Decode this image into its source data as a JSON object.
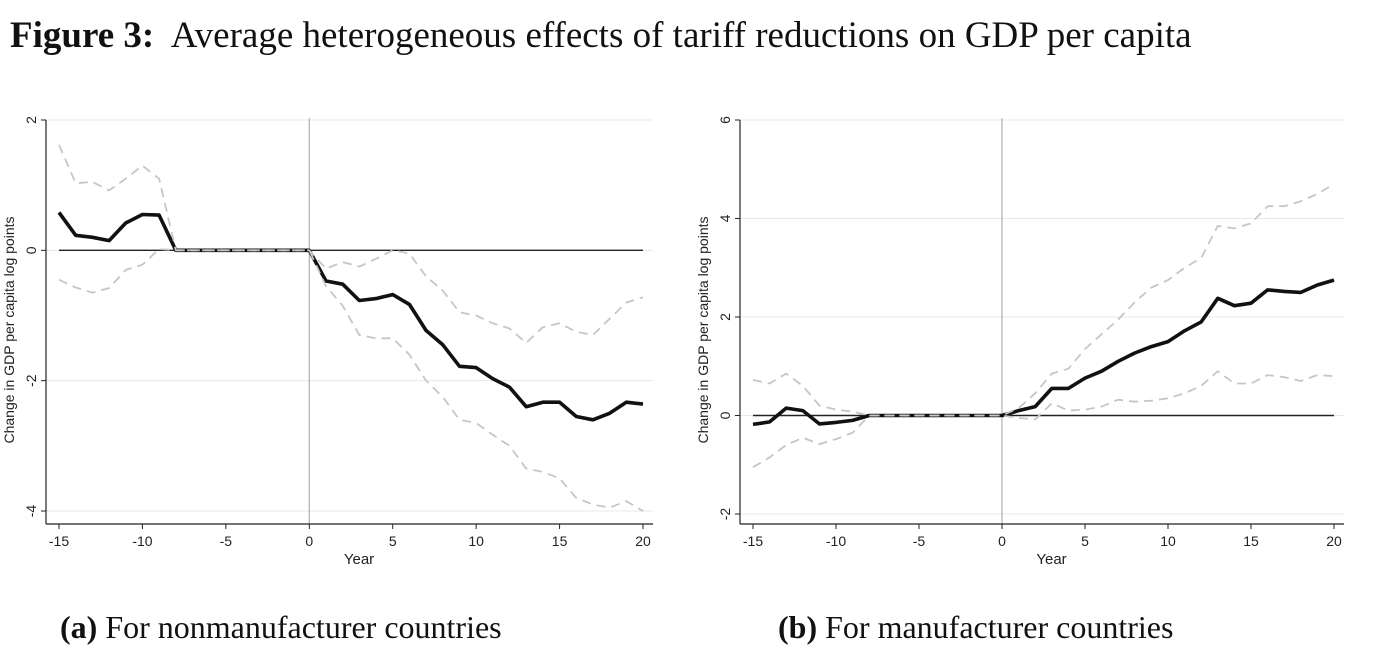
{
  "figure": {
    "label": "Figure 3:",
    "title": "Average heterogeneous effects of tariff reductions on GDP per capita"
  },
  "chart_data": [
    {
      "type": "line",
      "panel_label": "(a)",
      "caption": "For nonmanufacturer countries",
      "xlabel": "Year",
      "ylabel": "Change in GDP per capita log points",
      "xlim": [
        -15,
        20
      ],
      "ylim": [
        -4,
        2
      ],
      "xticks": [
        -15,
        -10,
        -5,
        0,
        5,
        10,
        15,
        20
      ],
      "yticks": [
        -4,
        -2,
        0,
        2
      ],
      "grid": true,
      "x": [
        -15,
        -14,
        -13,
        -12,
        -11,
        -10,
        -9,
        -8,
        -7,
        -6,
        -5,
        -4,
        -3,
        -2,
        -1,
        0,
        1,
        2,
        3,
        4,
        5,
        6,
        7,
        8,
        9,
        10,
        11,
        12,
        13,
        14,
        15,
        16,
        17,
        18,
        19,
        20
      ],
      "series": [
        {
          "role": "estimate",
          "values": [
            0.58,
            0.23,
            0.2,
            0.15,
            0.42,
            0.55,
            0.54,
            0,
            0,
            0,
            0,
            0,
            0,
            0,
            0,
            0,
            -0.47,
            -0.52,
            -0.77,
            -0.74,
            -0.68,
            -0.83,
            -1.23,
            -1.45,
            -1.78,
            -1.8,
            -1.97,
            -2.1,
            -2.4,
            -2.33,
            -2.33,
            -2.55,
            -2.6,
            -2.5,
            -2.33,
            -2.36
          ]
        },
        {
          "role": "upper-ci",
          "values": [
            1.62,
            1.03,
            1.05,
            0.92,
            1.1,
            1.3,
            1.1,
            0,
            0,
            0,
            0,
            0,
            0,
            0,
            0,
            0,
            -0.28,
            -0.18,
            -0.25,
            -0.13,
            0,
            -0.05,
            -0.4,
            -0.62,
            -0.95,
            -1.0,
            -1.12,
            -1.2,
            -1.42,
            -1.18,
            -1.12,
            -1.25,
            -1.3,
            -1.05,
            -0.8,
            -0.72
          ]
        },
        {
          "role": "lower-ci",
          "values": [
            -0.45,
            -0.57,
            -0.65,
            -0.58,
            -0.3,
            -0.22,
            0.02,
            0,
            0,
            0,
            0,
            0,
            0,
            0,
            0,
            0,
            -0.55,
            -0.85,
            -1.3,
            -1.35,
            -1.35,
            -1.6,
            -2.0,
            -2.25,
            -2.6,
            -2.65,
            -2.83,
            -3.0,
            -3.35,
            -3.4,
            -3.5,
            -3.8,
            -3.9,
            -3.95,
            -3.85,
            -4.0
          ]
        }
      ]
    },
    {
      "type": "line",
      "panel_label": "(b)",
      "caption": "For manufacturer countries",
      "xlabel": "Year",
      "ylabel": "Change in GDP per capita log points",
      "xlim": [
        -15,
        20
      ],
      "ylim": [
        -2,
        6
      ],
      "xticks": [
        -15,
        -10,
        -5,
        0,
        5,
        10,
        15,
        20
      ],
      "yticks": [
        -2,
        0,
        2,
        4,
        6
      ],
      "grid": true,
      "x": [
        -15,
        -14,
        -13,
        -12,
        -11,
        -10,
        -9,
        -8,
        -7,
        -6,
        -5,
        -4,
        -3,
        -2,
        -1,
        0,
        1,
        2,
        3,
        4,
        5,
        6,
        7,
        8,
        9,
        10,
        11,
        12,
        13,
        14,
        15,
        16,
        17,
        18,
        19,
        20
      ],
      "series": [
        {
          "role": "estimate",
          "values": [
            -0.18,
            -0.13,
            0.15,
            0.1,
            -0.17,
            -0.14,
            -0.1,
            0,
            0,
            0,
            0,
            0,
            0,
            0,
            0,
            0,
            0.1,
            0.18,
            0.55,
            0.55,
            0.76,
            0.9,
            1.1,
            1.27,
            1.4,
            1.5,
            1.72,
            1.9,
            2.38,
            2.23,
            2.28,
            2.55,
            2.52,
            2.5,
            2.65,
            2.75
          ]
        },
        {
          "role": "upper-ci",
          "values": [
            0.72,
            0.65,
            0.85,
            0.6,
            0.2,
            0.12,
            0.08,
            0,
            0,
            0,
            0,
            0,
            0,
            0,
            0,
            0,
            0.15,
            0.45,
            0.85,
            0.95,
            1.35,
            1.65,
            1.95,
            2.3,
            2.6,
            2.75,
            3.0,
            3.2,
            3.85,
            3.8,
            3.9,
            4.25,
            4.25,
            4.35,
            4.5,
            4.7
          ]
        },
        {
          "role": "lower-ci",
          "values": [
            -1.05,
            -0.85,
            -0.6,
            -0.45,
            -0.58,
            -0.48,
            -0.35,
            0,
            0,
            0,
            0,
            0,
            0,
            0,
            0,
            0,
            -0.05,
            -0.08,
            0.25,
            0.1,
            0.12,
            0.18,
            0.32,
            0.28,
            0.3,
            0.35,
            0.45,
            0.6,
            0.9,
            0.65,
            0.65,
            0.82,
            0.78,
            0.7,
            0.82,
            0.8
          ]
        }
      ]
    }
  ]
}
